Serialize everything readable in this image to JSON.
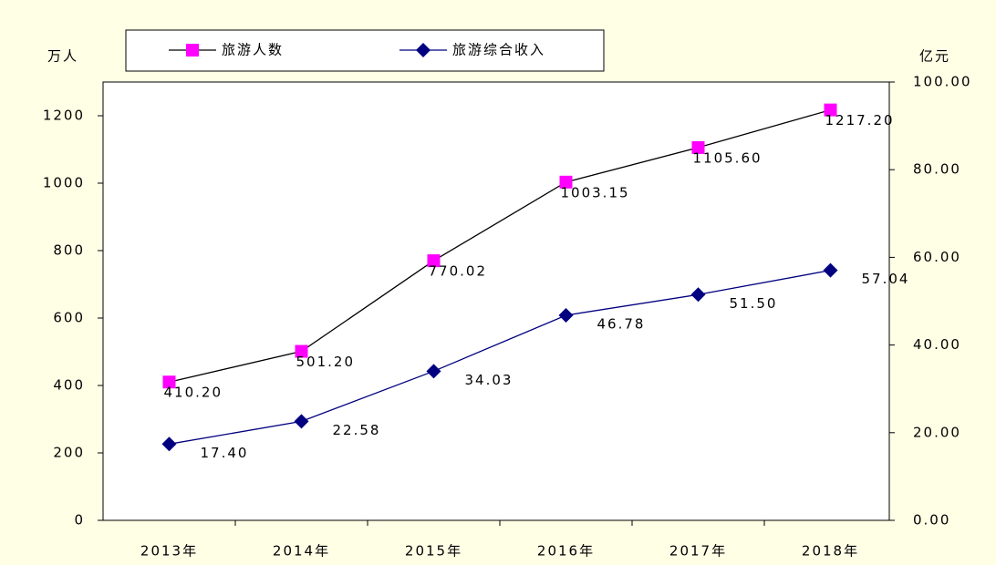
{
  "chart_data": {
    "type": "line",
    "y_label": "万人",
    "y2_label": "亿元",
    "categories": [
      "2013年",
      "2014年",
      "2015年",
      "2016年",
      "2017年",
      "2018年"
    ],
    "series": [
      {
        "name": "旅游人数",
        "color": "#ff00ff",
        "line_color": "#000000",
        "marker": "square",
        "values": [
          410.2,
          501.2,
          770.02,
          1003.15,
          1105.6,
          1217.2
        ],
        "value_labels": [
          "410.20",
          "501.20",
          "770.02",
          "1003.15",
          "1105.60",
          "1217.20"
        ]
      },
      {
        "name": "旅游综合收入",
        "color": "#000080",
        "line_color": "#000080",
        "marker": "diamond",
        "axis": "y2",
        "values": [
          17.4,
          22.58,
          34.03,
          46.78,
          51.5,
          57.04
        ],
        "value_labels": [
          "17.40",
          "22.58",
          "34.03",
          "46.78",
          "51.50",
          "57.04"
        ]
      }
    ],
    "ylim": [
      0,
      1300
    ],
    "yticks": [
      0,
      200,
      400,
      600,
      800,
      1000,
      1200
    ],
    "y2lim": [
      0,
      100
    ],
    "y2ticks": [
      {
        "value": 0,
        "label": "0.00"
      },
      {
        "value": 20,
        "label": "20.00"
      },
      {
        "value": 40,
        "label": "40.00"
      },
      {
        "value": 60,
        "label": "60.00"
      },
      {
        "value": 80,
        "label": "80.00"
      },
      {
        "value": 100,
        "label": "100.00"
      }
    ],
    "legend": "top"
  }
}
